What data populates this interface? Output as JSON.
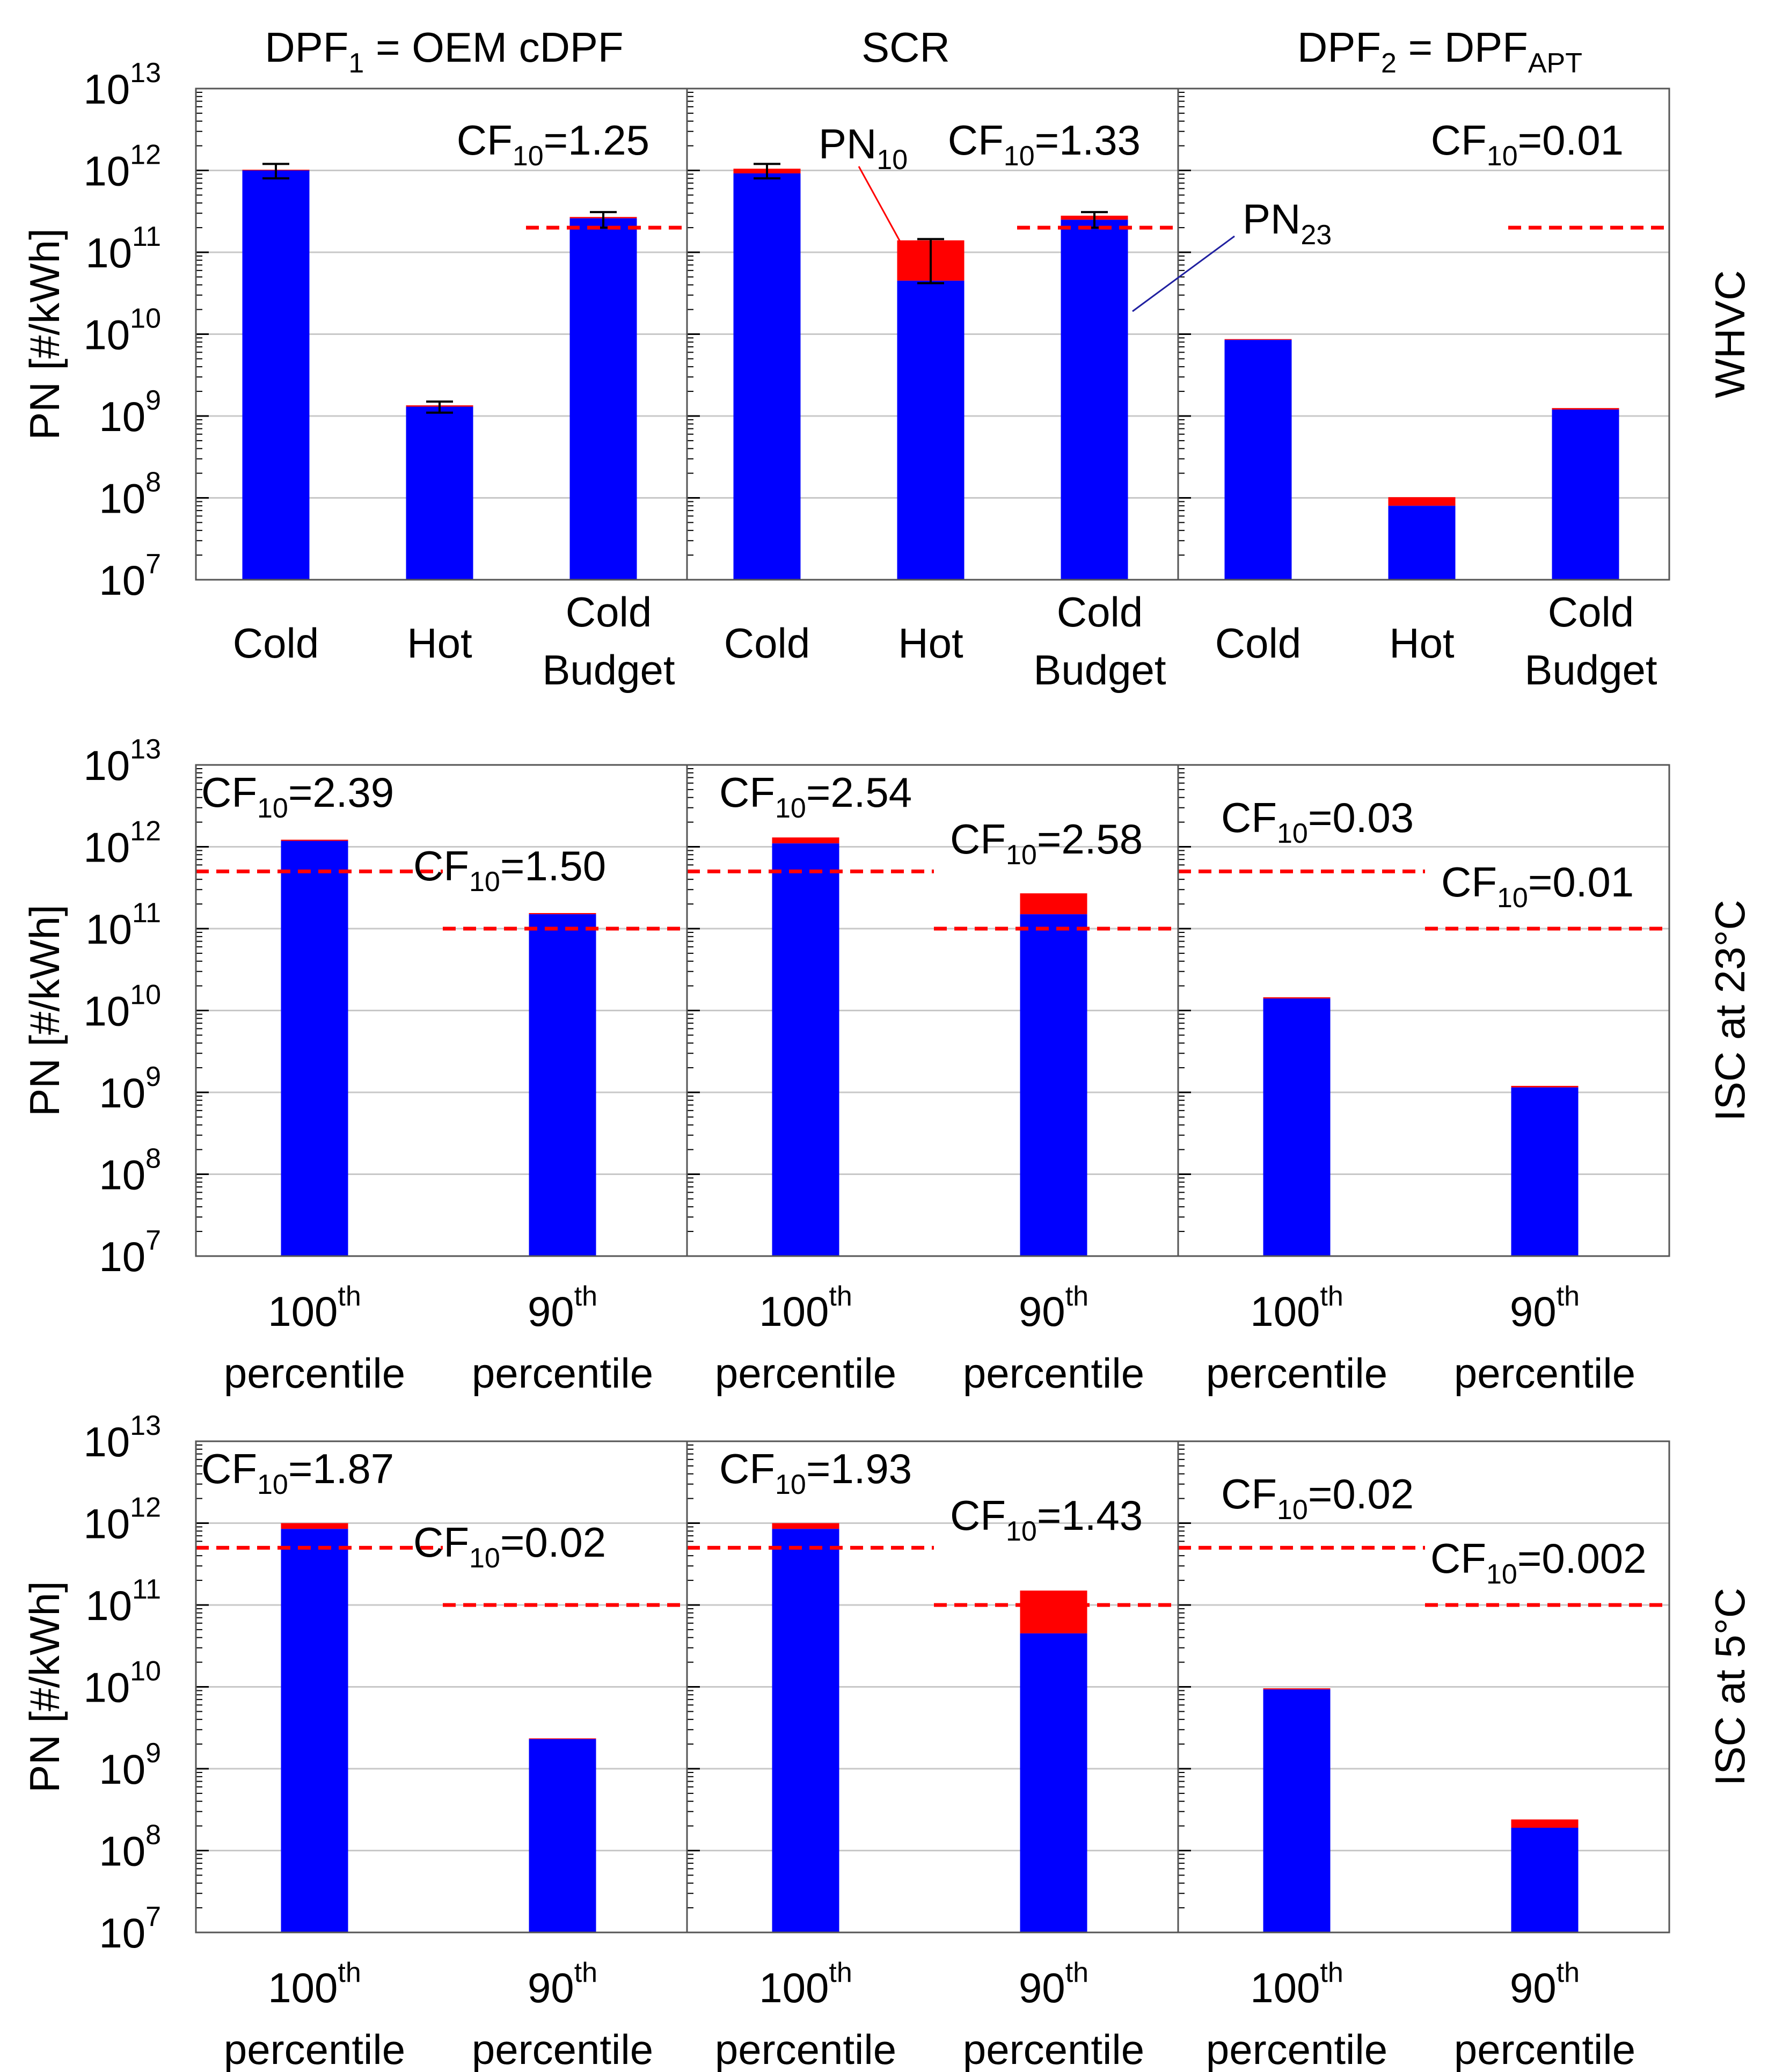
{
  "colors": {
    "pn10": "#ff0000",
    "pn23": "#0000ff",
    "budget": "#ff0000",
    "axis": "#000000",
    "grid": "#c8c8c8"
  },
  "chart_data": {
    "type": "bar",
    "stacked": true,
    "yscale": "log",
    "ylim": [
      10000000.0,
      10000000000000.0
    ],
    "ylabel": "PN [#/kWh]",
    "y_ticks": [
      {
        "base": "10",
        "exp": "7",
        "value": 10000000.0
      },
      {
        "base": "10",
        "exp": "8",
        "value": 100000000.0
      },
      {
        "base": "10",
        "exp": "9",
        "value": 1000000000.0
      },
      {
        "base": "10",
        "exp": "10",
        "value": 10000000000.0
      },
      {
        "base": "10",
        "exp": "11",
        "value": 100000000000.0
      },
      {
        "base": "10",
        "exp": "12",
        "value": 1000000000000.0
      },
      {
        "base": "10",
        "exp": "13",
        "value": 10000000000000.0
      }
    ],
    "series": [
      {
        "name": "PN10",
        "label": "PN",
        "sub": "10"
      },
      {
        "name": "PN23",
        "label": "PN",
        "sub": "23"
      }
    ],
    "columns": [
      {
        "title": "DPF",
        "title_sub": "1",
        "title_rest": " = OEM cDPF"
      },
      {
        "title": "SCR",
        "title_sub": "",
        "title_rest": ""
      },
      {
        "title": "DPF",
        "title_sub": "2",
        "title_rest": " = DPF",
        "title_sub2": "APT"
      }
    ],
    "rows": [
      {
        "label": "WHVC",
        "categories": [
          [
            "Cold"
          ],
          [
            "Hot"
          ],
          [
            "Cold",
            "Budget"
          ]
        ],
        "panels": [
          {
            "pn23": [
              1000000000000.0,
              1300000000.0,
              260000000000.0
            ],
            "pn10": [
              1020000000000.0,
              1350000000.0,
              270000000000.0
            ],
            "errors": [
              [
                800000000000.0,
                1200000000000.0
              ],
              [
                1100000000.0,
                1500000000.0
              ],
              [
                200000000000.0,
                310000000000.0
              ]
            ],
            "budget": {
              "value": 200000000000.0,
              "slot": 2
            },
            "cf": {
              "prefix": "CF",
              "sub": "10",
              "value": "=1.25"
            }
          },
          {
            "pn23": [
              920000000000.0,
              45000000000.0,
              250000000000.0
            ],
            "pn10": [
              1050000000000.0,
              140000000000.0,
              280000000000.0
            ],
            "errors": [
              [
                800000000000.0,
                1200000000000.0
              ],
              [
                42000000000.0,
                145000000000.0
              ],
              [
                200000000000.0,
                310000000000.0
              ]
            ],
            "budget": {
              "value": 200000000000.0,
              "slot": 2
            },
            "cf": {
              "prefix": "CF",
              "sub": "10",
              "value": "=1.33"
            }
          },
          {
            "pn23": [
              8500000000.0,
              80000000.0,
              1200000000.0
            ],
            "pn10": [
              8700000000.0,
              102000000.0,
              1250000000.0
            ],
            "errors": [],
            "budget": {
              "value": 200000000000.0,
              "slot": 2
            },
            "cf": {
              "prefix": "CF",
              "sub": "10",
              "value": "=0.01"
            }
          }
        ]
      },
      {
        "label": "ISC at 23°C",
        "categories": [
          [
            "100",
            "th",
            "percentile"
          ],
          [
            "90",
            "th",
            "percentile"
          ]
        ],
        "panels": [
          {
            "pn23": [
              1180000000000.0,
              150000000000.0
            ],
            "pn10": [
              1220000000000.0,
              155000000000.0
            ],
            "budgets": [
              500000000000.0,
              100000000000.0
            ],
            "cf": [
              {
                "prefix": "CF",
                "sub": "10",
                "value": "=2.39"
              },
              {
                "prefix": "CF",
                "sub": "10",
                "value": "=1.50"
              }
            ]
          },
          {
            "pn23": [
              1100000000000.0,
              150000000000.0
            ],
            "pn10": [
              1300000000000.0,
              270000000000.0
            ],
            "budgets": [
              500000000000.0,
              100000000000.0
            ],
            "cf": [
              {
                "prefix": "CF",
                "sub": "10",
                "value": "=2.54"
              },
              {
                "prefix": "CF",
                "sub": "10",
                "value": "=2.58"
              }
            ]
          },
          {
            "pn23": [
              14000000000.0,
              1150000000.0
            ],
            "pn10": [
              14500000000.0,
              1200000000.0
            ],
            "budgets": [
              500000000000.0,
              100000000000.0
            ],
            "cf": [
              {
                "prefix": "CF",
                "sub": "10",
                "value": "=0.03"
              },
              {
                "prefix": "CF",
                "sub": "10",
                "value": "=0.01"
              }
            ]
          }
        ]
      },
      {
        "label": "ISC at 5°C",
        "categories": [
          [
            "100",
            "th",
            "percentile"
          ],
          [
            "90",
            "th",
            "percentile"
          ]
        ],
        "panels": [
          {
            "pn23": [
              850000000000.0,
              2300000000.0
            ],
            "pn10": [
              1000000000000.0,
              2350000000.0
            ],
            "budgets": [
              500000000000.0,
              100000000000.0
            ],
            "cf": [
              {
                "prefix": "CF",
                "sub": "10",
                "value": "=1.87"
              },
              {
                "prefix": "CF",
                "sub": "10",
                "value": "=0.02"
              }
            ]
          },
          {
            "pn23": [
              850000000000.0,
              45000000000.0
            ],
            "pn10": [
              1000000000000.0,
              150000000000.0
            ],
            "budgets": [
              500000000000.0,
              100000000000.0
            ],
            "cf": [
              {
                "prefix": "CF",
                "sub": "10",
                "value": "=1.93"
              },
              {
                "prefix": "CF",
                "sub": "10",
                "value": "=1.43"
              }
            ]
          },
          {
            "pn23": [
              9300000000.0,
              190000000.0
            ],
            "pn10": [
              9600000000.0,
              240000000.0
            ],
            "budgets": [
              500000000000.0,
              100000000000.0
            ],
            "cf": [
              {
                "prefix": "CF",
                "sub": "10",
                "value": "=0.02"
              },
              {
                "prefix": "CF",
                "sub": "10",
                "value": "=0.002"
              }
            ]
          }
        ]
      }
    ]
  }
}
